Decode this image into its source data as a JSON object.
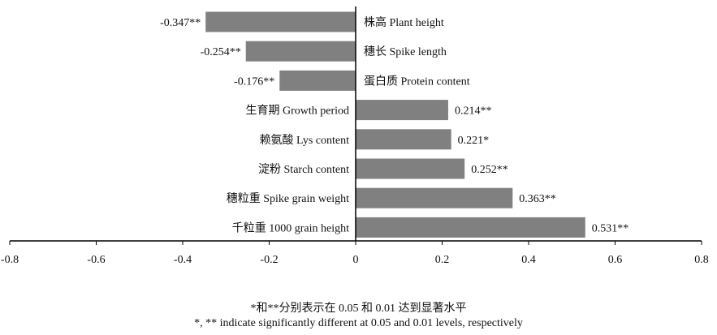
{
  "chart_data": {
    "type": "bar",
    "orientation": "horizontal",
    "categories": [
      "株高 Plant height",
      "穗长 Spike length",
      "蛋白质 Protein content",
      "生育期 Growth period",
      "赖氨酸 Lys content",
      "淀粉 Starch content",
      "穗粒重 Spike grain weight",
      "千粒重 1000 grain height"
    ],
    "values": [
      -0.347,
      -0.254,
      -0.176,
      0.214,
      0.221,
      0.252,
      0.363,
      0.531
    ],
    "value_labels": [
      "-0.347**",
      "-0.254**",
      "-0.176**",
      "0.214**",
      "0.221*",
      "0.252**",
      "0.363**",
      "0.531**"
    ],
    "xlim": [
      -0.8,
      0.8
    ],
    "xticks": [
      "-0.8",
      "-0.6",
      "-0.4",
      "-0.2",
      "0",
      "0.2",
      "0.4",
      "0.6",
      "0.8"
    ],
    "bar_color": "#808080",
    "grid": false,
    "legend": "none"
  },
  "notes": {
    "cn": "*和**分别表示在 0.05 和 0.01 达到显著水平",
    "en": "*, ** indicate significantly different at 0.05 and 0.01 levels, respectively"
  }
}
